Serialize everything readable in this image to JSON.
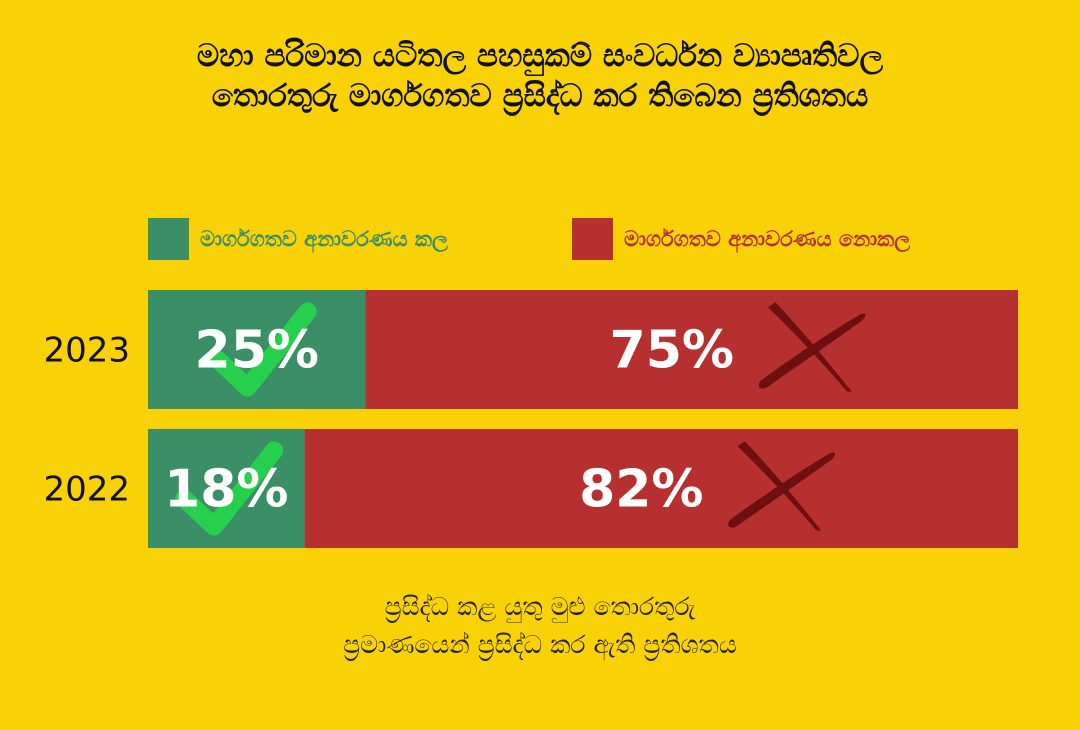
{
  "colors": {
    "background": "#f8d107",
    "disclosed": "#3a8f66",
    "not_disclosed": "#b73030",
    "check": "#26d04c",
    "cross": "#6e0f12"
  },
  "title_lines": [
    "මහා පරිමාන යටිතල පහසුකම් සංවර්ධන ව්‍යාපෘතිවල",
    "තොරතුරු මාර්ගගතව ප්‍රසිද්ධ කර තිබෙන ප්‍රතිශතය"
  ],
  "footnote_lines": [
    "ප්‍රසිද්ධ කළ යුතු මුළු තොරතුරු",
    "ප්‍රමාණයෙන් ප්‍රසිද්ධ කර ඇති ප්‍රතිශතය"
  ],
  "chart_data": {
    "type": "bar",
    "orientation": "horizontal",
    "stacked": true,
    "categories": [
      "2023",
      "2022"
    ],
    "series": [
      {
        "name": "මාර්ගගතව අනාවරණය කල",
        "values": [
          25,
          18
        ],
        "labels": [
          "25%",
          "18%"
        ],
        "icon": "check-icon"
      },
      {
        "name": "මාර්ගගතව අනාවරණය නොකල",
        "values": [
          75,
          82
        ],
        "labels": [
          "75%",
          "82%"
        ],
        "icon": "cross-icon"
      }
    ],
    "xlim": [
      0,
      100
    ],
    "grid": false,
    "legend": "top"
  }
}
